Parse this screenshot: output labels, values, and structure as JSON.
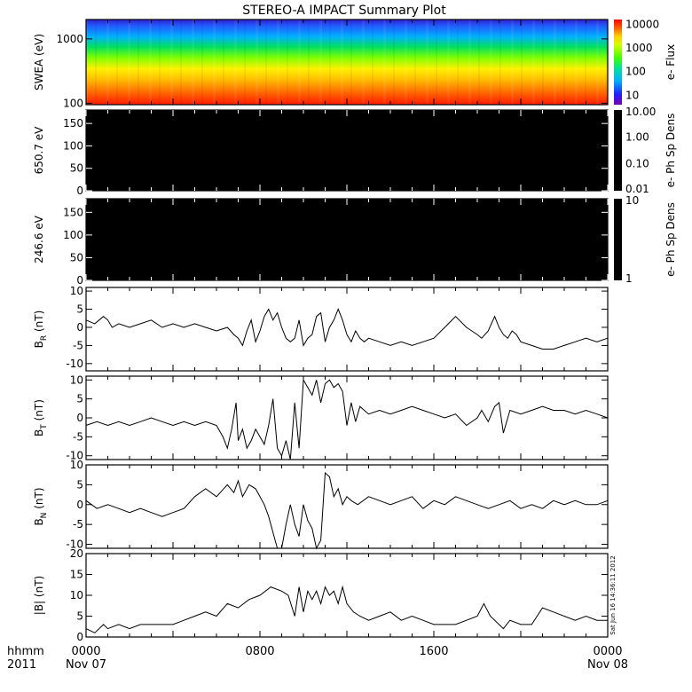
{
  "title": "STEREO-A IMPACT Summary Plot",
  "timestamp": "Sat Jun 16 14:36:11 2012",
  "time_axis": {
    "label_top": "hhmm",
    "label_bottom": "2011",
    "ticks": [
      {
        "hour": 0,
        "top": "0000",
        "bottom": "Nov 07"
      },
      {
        "hour": 8,
        "top": "0800",
        "bottom": ""
      },
      {
        "hour": 16,
        "top": "1600",
        "bottom": ""
      },
      {
        "hour": 24,
        "top": "0000",
        "bottom": "Nov 08"
      }
    ],
    "range_hours": [
      0,
      24
    ]
  },
  "chart_data": [
    {
      "type": "heatmap",
      "ylabel": "SWEA (eV)",
      "yscale": "log",
      "ylim": [
        95,
        2000
      ],
      "yticks": [
        {
          "value": 100,
          "label": "100"
        },
        {
          "value": 1000,
          "label": "1000"
        }
      ],
      "colorbar": {
        "label": "e- Flux",
        "scale": "log",
        "range": [
          4,
          16000
        ],
        "ticks": [
          {
            "value": 10,
            "label": "10"
          },
          {
            "value": 100,
            "label": "100"
          },
          {
            "value": 1000,
            "label": "1000"
          },
          {
            "value": 10000,
            "label": "10000"
          }
        ]
      }
    },
    {
      "type": "heatmap",
      "ylabel": "650.7 eV",
      "ylim": [
        0,
        180
      ],
      "yticks": [
        {
          "value": 0,
          "label": "0"
        },
        {
          "value": 50,
          "label": "50"
        },
        {
          "value": 100,
          "label": "100"
        },
        {
          "value": 150,
          "label": "150"
        }
      ],
      "fill": "#000000",
      "colorbar": {
        "label": "e- Ph Sp Dens",
        "scale": "log",
        "range": [
          0.01,
          10
        ],
        "ticks": [
          {
            "value": 10,
            "label": "10.00"
          },
          {
            "value": 1,
            "label": "1.00"
          },
          {
            "value": 0.1,
            "label": "0.10"
          },
          {
            "value": 0.01,
            "label": "0.01"
          }
        ]
      }
    },
    {
      "type": "heatmap",
      "ylabel": "246.6 eV",
      "ylim": [
        0,
        180
      ],
      "yticks": [
        {
          "value": 0,
          "label": "0"
        },
        {
          "value": 50,
          "label": "50"
        },
        {
          "value": 100,
          "label": "100"
        },
        {
          "value": 150,
          "label": "150"
        }
      ],
      "fill": "#000000",
      "colorbar": {
        "label": "e- Ph Sp Dens",
        "scale": "log",
        "range": [
          1,
          10
        ],
        "ticks": [
          {
            "value": 10,
            "label": "10"
          },
          {
            "value": 1,
            "label": "1"
          }
        ]
      }
    },
    {
      "type": "line",
      "ylabel": "B",
      "ylabel_sub": "R",
      "ylabel_unit": " (nT)",
      "ylim": [
        -12,
        11
      ],
      "yticks": [
        {
          "value": -10,
          "label": "-10"
        },
        {
          "value": -5,
          "label": "-5"
        },
        {
          "value": 0,
          "label": "0"
        },
        {
          "value": 5,
          "label": "5"
        },
        {
          "value": 10,
          "label": "10"
        }
      ],
      "x": [
        0,
        0.4,
        0.8,
        1.0,
        1.2,
        1.5,
        2.0,
        2.5,
        3.0,
        3.5,
        4.0,
        4.5,
        5.0,
        5.5,
        6.0,
        6.5,
        6.8,
        7.0,
        7.2,
        7.4,
        7.6,
        7.8,
        8.0,
        8.2,
        8.4,
        8.6,
        8.8,
        9.0,
        9.2,
        9.4,
        9.6,
        9.8,
        10.0,
        10.2,
        10.4,
        10.6,
        10.8,
        11.0,
        11.2,
        11.4,
        11.6,
        11.8,
        12.0,
        12.2,
        12.4,
        12.6,
        12.8,
        13.0,
        13.5,
        14.0,
        14.5,
        15.0,
        15.5,
        16.0,
        16.5,
        17.0,
        17.5,
        18.0,
        18.2,
        18.5,
        18.8,
        19.0,
        19.2,
        19.4,
        19.6,
        19.8,
        20.0,
        20.5,
        21.0,
        21.5,
        22.0,
        22.5,
        23.0,
        23.5,
        24.0
      ],
      "values": [
        2,
        1,
        3,
        2,
        0,
        1,
        0,
        1,
        2,
        0,
        1,
        0,
        1,
        0,
        -1,
        0,
        -2,
        -3,
        -5,
        -1,
        2,
        -4,
        -1,
        3,
        5,
        2,
        4,
        0,
        -3,
        -4,
        -3,
        2,
        -5,
        -3,
        -2,
        3,
        4,
        -4,
        0,
        2,
        5,
        2,
        -2,
        -4,
        -1,
        -3,
        -4,
        -3,
        -4,
        -5,
        -4,
        -5,
        -4,
        -3,
        0,
        3,
        0,
        -2,
        -3,
        -1,
        3,
        0,
        -2,
        -3,
        -1,
        -2,
        -4,
        -5,
        -6,
        -6,
        -5,
        -4,
        -3,
        -4,
        -3
      ]
    },
    {
      "type": "line",
      "ylabel": "B",
      "ylabel_sub": "T",
      "ylabel_unit": " (nT)",
      "ylim": [
        -11,
        11
      ],
      "yticks": [
        {
          "value": -10,
          "label": "-10"
        },
        {
          "value": -5,
          "label": "-5"
        },
        {
          "value": 0,
          "label": "0"
        },
        {
          "value": 5,
          "label": "5"
        },
        {
          "value": 10,
          "label": "10"
        }
      ],
      "x": [
        0,
        0.5,
        1.0,
        1.5,
        2.0,
        2.5,
        3.0,
        3.5,
        4.0,
        4.5,
        5.0,
        5.5,
        6.0,
        6.3,
        6.5,
        6.7,
        6.9,
        7.0,
        7.2,
        7.4,
        7.6,
        7.8,
        8.0,
        8.2,
        8.4,
        8.6,
        8.8,
        9.0,
        9.2,
        9.4,
        9.6,
        9.8,
        10.0,
        10.2,
        10.4,
        10.6,
        10.8,
        11.0,
        11.2,
        11.4,
        11.6,
        11.8,
        12.0,
        12.2,
        12.4,
        12.6,
        12.8,
        13.0,
        13.5,
        14.0,
        14.5,
        15.0,
        15.5,
        16.0,
        16.5,
        17.0,
        17.5,
        18.0,
        18.2,
        18.5,
        18.8,
        19.0,
        19.2,
        19.5,
        20.0,
        20.5,
        21.0,
        21.5,
        22.0,
        22.5,
        23.0,
        23.5,
        24.0
      ],
      "values": [
        -2,
        -1,
        -2,
        -1,
        -2,
        -1,
        0,
        -1,
        -2,
        -1,
        -2,
        -1,
        -2,
        -5,
        -8,
        -3,
        4,
        -6,
        -3,
        -8,
        -6,
        -3,
        -5,
        -7,
        -2,
        5,
        -8,
        -10,
        -6,
        -11,
        4,
        -8,
        10,
        8,
        6,
        10,
        4,
        9,
        10,
        8,
        9,
        7,
        -2,
        4,
        -1,
        3,
        2,
        1,
        2,
        1,
        2,
        3,
        2,
        1,
        0,
        1,
        -2,
        0,
        2,
        -1,
        3,
        4,
        -4,
        2,
        1,
        2,
        3,
        2,
        2,
        1,
        2,
        1,
        0
      ]
    },
    {
      "type": "line",
      "ylabel": "B",
      "ylabel_sub": "N",
      "ylabel_unit": " (nT)",
      "ylim": [
        -11,
        10
      ],
      "yticks": [
        {
          "value": -10,
          "label": "-10"
        },
        {
          "value": -5,
          "label": "-5"
        },
        {
          "value": 0,
          "label": "0"
        },
        {
          "value": 5,
          "label": "5"
        },
        {
          "value": 10,
          "label": "10"
        }
      ],
      "x": [
        0,
        0.5,
        1.0,
        1.5,
        2.0,
        2.5,
        3.0,
        3.5,
        4.0,
        4.5,
        5.0,
        5.5,
        6.0,
        6.5,
        6.8,
        7.0,
        7.2,
        7.5,
        7.8,
        8.0,
        8.2,
        8.4,
        8.6,
        8.8,
        9.0,
        9.2,
        9.4,
        9.6,
        9.8,
        10.0,
        10.2,
        10.4,
        10.6,
        10.8,
        11.0,
        11.2,
        11.4,
        11.6,
        11.8,
        12.0,
        12.2,
        12.5,
        13.0,
        13.5,
        14.0,
        14.5,
        15.0,
        15.5,
        16.0,
        16.5,
        17.0,
        17.5,
        18.0,
        18.5,
        19.0,
        19.5,
        20.0,
        20.5,
        21.0,
        21.5,
        22.0,
        22.5,
        23.0,
        23.5,
        24.0
      ],
      "values": [
        1,
        -1,
        0,
        -1,
        -2,
        -1,
        -2,
        -3,
        -2,
        -1,
        2,
        4,
        2,
        5,
        3,
        6,
        2,
        5,
        4,
        2,
        0,
        -3,
        -7,
        -11,
        -11,
        -5,
        0,
        -5,
        -8,
        0,
        -4,
        -6,
        -11,
        -9,
        8,
        7,
        2,
        4,
        0,
        2,
        1,
        0,
        2,
        1,
        0,
        1,
        2,
        -1,
        1,
        0,
        2,
        1,
        0,
        -1,
        0,
        1,
        -1,
        0,
        -1,
        1,
        0,
        1,
        0,
        0,
        1
      ]
    },
    {
      "type": "line",
      "ylabel": "|B| (nT)",
      "ylim": [
        0,
        20
      ],
      "yticks": [
        {
          "value": 0,
          "label": "0"
        },
        {
          "value": 5,
          "label": "5"
        },
        {
          "value": 10,
          "label": "10"
        },
        {
          "value": 15,
          "label": "15"
        },
        {
          "value": 20,
          "label": "20"
        }
      ],
      "x": [
        0,
        0.4,
        0.8,
        1.0,
        1.5,
        2.0,
        2.5,
        3.0,
        3.5,
        4.0,
        4.5,
        5.0,
        5.5,
        6.0,
        6.5,
        7.0,
        7.5,
        8.0,
        8.5,
        9.0,
        9.3,
        9.6,
        9.8,
        10.0,
        10.2,
        10.4,
        10.6,
        10.8,
        11.0,
        11.2,
        11.4,
        11.6,
        11.8,
        12.0,
        12.3,
        12.6,
        13.0,
        13.5,
        14.0,
        14.5,
        15.0,
        15.5,
        16.0,
        16.5,
        17.0,
        17.5,
        18.0,
        18.3,
        18.6,
        19.0,
        19.2,
        19.5,
        20.0,
        20.5,
        21.0,
        21.5,
        22.0,
        22.5,
        23.0,
        23.5,
        24.0
      ],
      "values": [
        2,
        1,
        3,
        2,
        3,
        2,
        3,
        3,
        3,
        3,
        4,
        5,
        6,
        5,
        8,
        7,
        9,
        10,
        12,
        11,
        10,
        5,
        12,
        6,
        11,
        9,
        11,
        8,
        12,
        10,
        11,
        8,
        12,
        8,
        6,
        5,
        4,
        5,
        6,
        4,
        5,
        4,
        3,
        3,
        3,
        4,
        5,
        8,
        5,
        3,
        2,
        4,
        3,
        3,
        7,
        6,
        5,
        4,
        5,
        4,
        4
      ]
    }
  ]
}
